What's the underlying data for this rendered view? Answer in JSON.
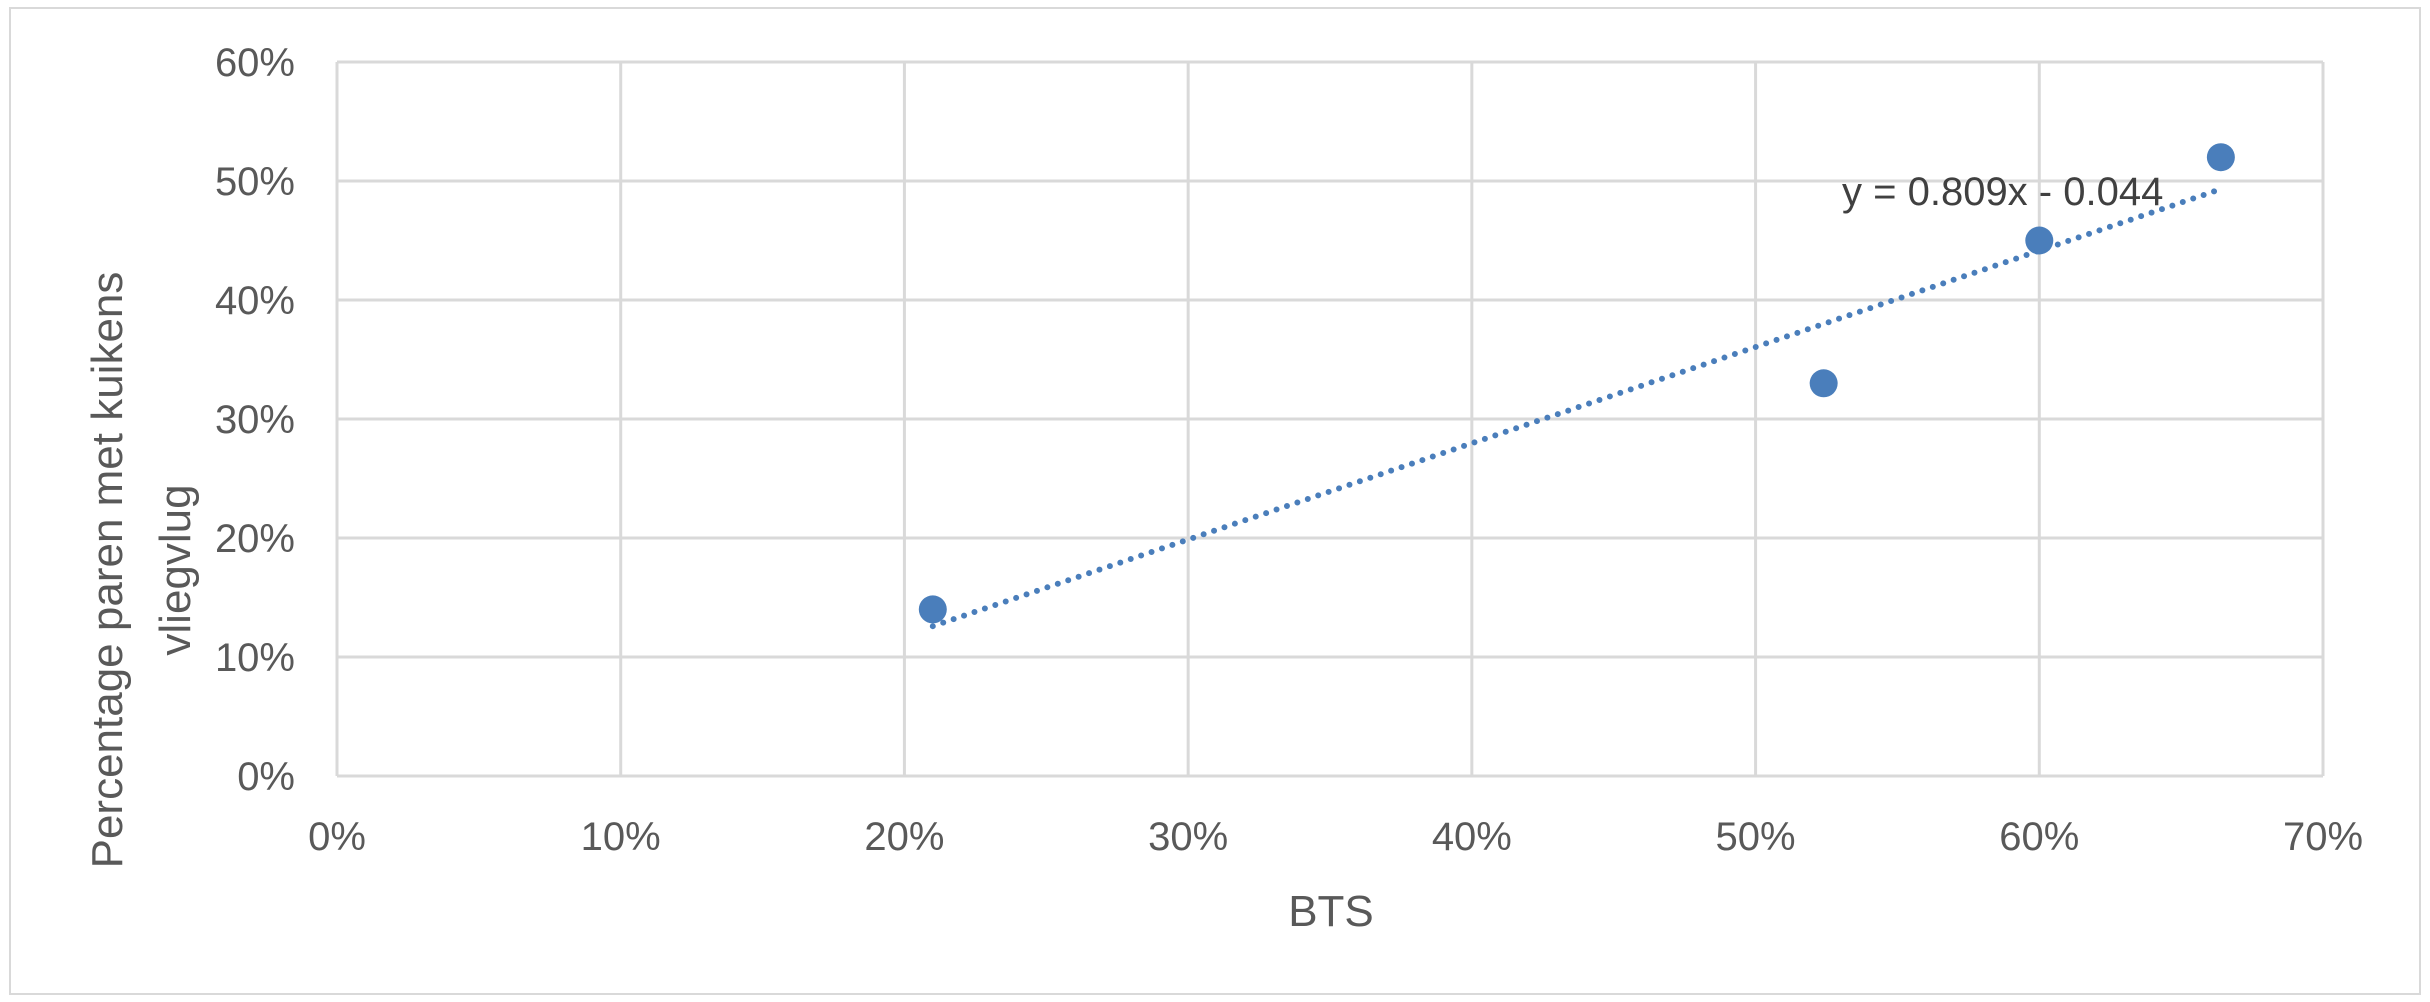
{
  "chart_data": {
    "type": "scatter",
    "title": "",
    "xlabel": "BTS",
    "ylabel_lines": [
      "Percentage paren met kuikens",
      "vliegvlug"
    ],
    "xlim": [
      0,
      0.7
    ],
    "ylim": [
      0,
      0.6
    ],
    "x_ticks": [
      0,
      0.1,
      0.2,
      0.3,
      0.4,
      0.5,
      0.6,
      0.7
    ],
    "y_ticks": [
      0,
      0.1,
      0.2,
      0.3,
      0.4,
      0.5,
      0.6
    ],
    "x_tick_labels": [
      "0%",
      "10%",
      "20%",
      "30%",
      "40%",
      "50%",
      "60%",
      "70%"
    ],
    "y_tick_labels": [
      "0%",
      "10%",
      "20%",
      "30%",
      "40%",
      "50%",
      "60%"
    ],
    "grid": true,
    "series": [
      {
        "points": [
          {
            "x": 0.21,
            "y": 0.14
          },
          {
            "x": 0.524,
            "y": 0.33
          },
          {
            "x": 0.6,
            "y": 0.45
          },
          {
            "x": 0.664,
            "y": 0.52
          }
        ],
        "color": "#4a7ebb"
      }
    ],
    "trendline": {
      "type": "linear",
      "style": "dotted",
      "slope": 0.809,
      "intercept": -0.044,
      "x_range": [
        0.21,
        0.664
      ],
      "equation_label": "y = 0.809x - 0.044",
      "color": "#4a7ebb"
    }
  }
}
